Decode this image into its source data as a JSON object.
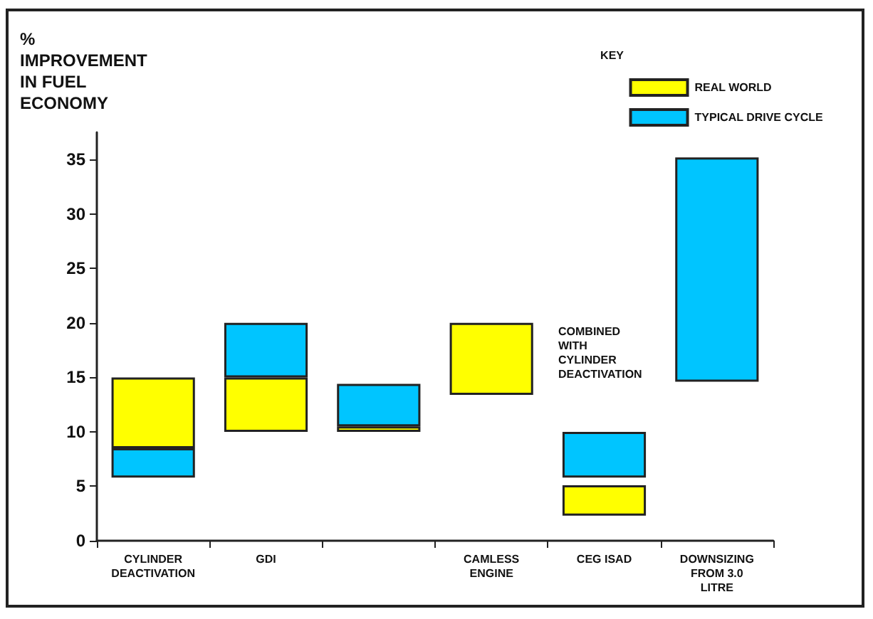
{
  "chart_data": {
    "type": "bar",
    "ylabel": "%\nIMPROVEMENT\nIN FUEL\nECONOMY",
    "legend_title": "KEY",
    "legend": "top right",
    "grid": false,
    "categories": [
      "CYLINDER\nDEACTIVATION",
      "GDI",
      null,
      "CAMLESS\nENGINE",
      "CEG ISAD",
      "DOWNSIZING\nFROM 3.0\nLITRE"
    ],
    "series": [
      {
        "name": "REAL WORLD",
        "color": "#ffff00",
        "base": [
          8.5,
          10,
          10,
          13.4,
          2.3,
          null
        ],
        "values": [
          6.5,
          5,
          0.5,
          6.6,
          2.8,
          null
        ]
      },
      {
        "name": "TYPICAL DRIVE CYCLE",
        "color": "#00c5ff",
        "base": [
          5.8,
          15,
          10.5,
          null,
          5.8,
          14.6
        ],
        "values": [
          2.7,
          5,
          3.9,
          null,
          4.2,
          20.6
        ]
      }
    ],
    "ylim": [
      0,
      37.5
    ],
    "yticks": [
      0,
      5,
      10,
      15,
      20,
      25,
      30,
      35
    ],
    "annotations": [
      "COMBINED\nWITH\nCYLINDER\nDEACTIVATION"
    ]
  }
}
